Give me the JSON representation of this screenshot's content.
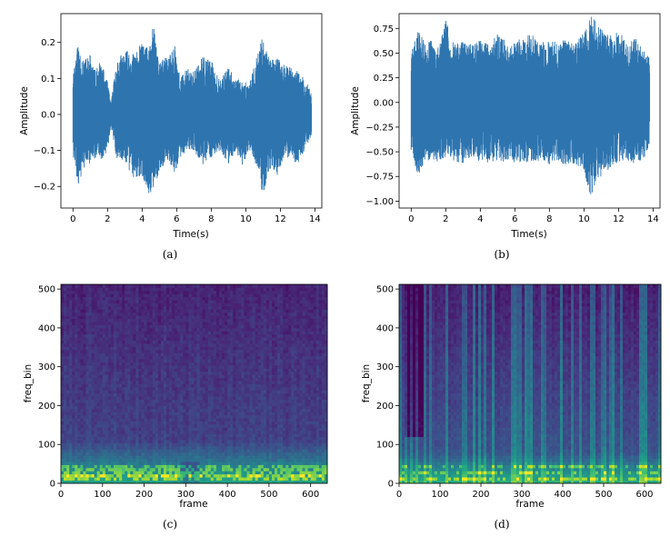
{
  "chart_data": [
    {
      "id": "a",
      "type": "line",
      "caption": "(a)",
      "xlabel": "Time(s)",
      "ylabel": "Amplitude",
      "xlim": [
        -0.7,
        14.4
      ],
      "ylim": [
        -0.26,
        0.28
      ],
      "xticks": [
        0,
        2,
        4,
        6,
        8,
        10,
        12,
        14
      ],
      "xtick_labels": [
        "0",
        "2",
        "4",
        "6",
        "8",
        "10",
        "12",
        "14"
      ],
      "yticks": [
        -0.2,
        -0.1,
        0.0,
        0.1,
        0.2
      ],
      "ytick_labels": [
        "−0.2",
        "−0.1",
        "0.0",
        "0.1",
        "0.2"
      ],
      "color": "#2e75b0",
      "duration": 13.8,
      "envelope": {
        "t": [
          0.0,
          0.3,
          0.6,
          1.0,
          1.3,
          1.6,
          2.0,
          2.2,
          2.5,
          3.0,
          3.5,
          4.0,
          4.4,
          4.6,
          5.0,
          5.5,
          5.9,
          6.2,
          6.6,
          7.0,
          7.5,
          8.0,
          8.5,
          9.0,
          9.4,
          9.8,
          10.2,
          10.6,
          11.0,
          11.4,
          11.8,
          12.2,
          12.6,
          13.0,
          13.4,
          13.8
        ],
        "upper": [
          0.12,
          0.2,
          0.15,
          0.17,
          0.12,
          0.15,
          0.09,
          0.03,
          0.15,
          0.18,
          0.17,
          0.2,
          0.18,
          0.26,
          0.15,
          0.16,
          0.2,
          0.1,
          0.13,
          0.12,
          0.16,
          0.15,
          0.1,
          0.13,
          0.1,
          0.1,
          0.08,
          0.16,
          0.22,
          0.15,
          0.16,
          0.14,
          0.13,
          0.12,
          0.1,
          0.06
        ],
        "lower": [
          -0.12,
          -0.2,
          -0.15,
          -0.14,
          -0.12,
          -0.13,
          -0.1,
          -0.03,
          -0.12,
          -0.13,
          -0.18,
          -0.17,
          -0.22,
          -0.22,
          -0.16,
          -0.13,
          -0.17,
          -0.12,
          -0.1,
          -0.1,
          -0.14,
          -0.12,
          -0.1,
          -0.14,
          -0.1,
          -0.14,
          -0.1,
          -0.14,
          -0.23,
          -0.15,
          -0.17,
          -0.12,
          -0.12,
          -0.14,
          -0.1,
          -0.06
        ]
      }
    },
    {
      "id": "b",
      "type": "line",
      "caption": "(b)",
      "xlabel": "Time(s)",
      "ylabel": "Amplitude",
      "xlim": [
        -0.7,
        14.4
      ],
      "ylim": [
        -1.07,
        0.9
      ],
      "xticks": [
        0,
        2,
        4,
        6,
        8,
        10,
        12,
        14
      ],
      "xtick_labels": [
        "0",
        "2",
        "4",
        "6",
        "8",
        "10",
        "12",
        "14"
      ],
      "yticks": [
        -1.0,
        -0.75,
        -0.5,
        -0.25,
        0.0,
        0.25,
        0.5,
        0.75
      ],
      "ytick_labels": [
        "−1.00",
        "−0.75",
        "−0.50",
        "−0.25",
        "0.00",
        "0.25",
        "0.50",
        "0.75"
      ],
      "color": "#2e75b0",
      "duration": 13.8,
      "envelope": {
        "t": [
          0.0,
          0.4,
          0.8,
          1.2,
          1.6,
          2.0,
          2.5,
          3.0,
          3.5,
          4.0,
          4.5,
          5.0,
          5.5,
          6.0,
          6.5,
          7.0,
          7.5,
          8.0,
          8.5,
          9.0,
          9.5,
          10.0,
          10.4,
          10.8,
          11.2,
          11.6,
          12.0,
          12.5,
          13.0,
          13.4,
          13.8
        ],
        "upper": [
          0.5,
          0.75,
          0.6,
          0.65,
          0.55,
          0.85,
          0.6,
          0.62,
          0.6,
          0.65,
          0.6,
          0.7,
          0.62,
          0.6,
          0.68,
          0.7,
          0.62,
          0.65,
          0.6,
          0.65,
          0.62,
          0.7,
          0.88,
          0.8,
          0.7,
          0.68,
          0.75,
          0.6,
          0.65,
          0.55,
          0.45
        ],
        "lower": [
          -0.5,
          -0.75,
          -0.6,
          -0.6,
          -0.6,
          -0.55,
          -0.6,
          -0.62,
          -0.55,
          -0.6,
          -0.62,
          -0.6,
          -0.6,
          -0.62,
          -0.6,
          -0.62,
          -0.58,
          -0.65,
          -0.6,
          -0.65,
          -0.62,
          -0.7,
          -1.0,
          -0.8,
          -0.75,
          -0.65,
          -0.6,
          -0.58,
          -0.65,
          -0.6,
          -0.45
        ]
      }
    },
    {
      "id": "c",
      "type": "heatmap",
      "caption": "(c)",
      "xlabel": "frame",
      "ylabel": "freq_bin",
      "xlim": [
        0,
        640
      ],
      "ylim": [
        0,
        512
      ],
      "xticks": [
        0,
        100,
        200,
        300,
        400,
        500,
        600
      ],
      "xtick_labels": [
        "0",
        "100",
        "200",
        "300",
        "400",
        "500",
        "600"
      ],
      "yticks": [
        0,
        100,
        200,
        300,
        400,
        500
      ],
      "ytick_labels": [
        "0",
        "100",
        "200",
        "300",
        "400",
        "500"
      ],
      "colormap": "viridis",
      "description_values": {
        "frames": 640,
        "freq_bins": 512,
        "low_band_bright_max_bin": 60,
        "bright_lines_bins": [
          25,
          18,
          40,
          12
        ]
      }
    },
    {
      "id": "d",
      "type": "heatmap",
      "caption": "(d)",
      "xlabel": "frame",
      "ylabel": "freq_bin",
      "xlim": [
        0,
        640
      ],
      "ylim": [
        0,
        512
      ],
      "xticks": [
        0,
        100,
        200,
        300,
        400,
        500,
        600
      ],
      "xtick_labels": [
        "0",
        "100",
        "200",
        "300",
        "400",
        "500",
        "600"
      ],
      "yticks": [
        0,
        100,
        200,
        300,
        400,
        500
      ],
      "ytick_labels": [
        "0",
        "100",
        "200",
        "300",
        "400",
        "500"
      ],
      "colormap": "viridis",
      "description_values": {
        "frames": 640,
        "freq_bins": 512,
        "low_band_bright_max_bin": 40,
        "bright_lines_bins": [
          12,
          30,
          45
        ]
      }
    }
  ],
  "colors": {
    "line": "#2e75b0",
    "viridis": [
      "#440154",
      "#482475",
      "#414487",
      "#355f8d",
      "#2a788e",
      "#21918c",
      "#22a884",
      "#44bf70",
      "#7ad151",
      "#bddf26",
      "#fde725"
    ]
  }
}
